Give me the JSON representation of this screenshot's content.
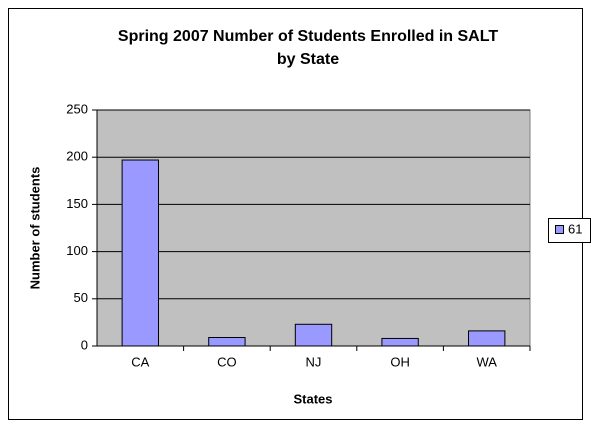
{
  "chart_data": {
    "type": "bar",
    "title": [
      "Spring 2007 Number of Students Enrolled in SALT",
      "by State"
    ],
    "x_label": "States",
    "y_label": "Number of students",
    "categories": [
      "CA",
      "CO",
      "NJ",
      "OH",
      "WA"
    ],
    "series": [
      {
        "name": "61",
        "color": "#9999ff",
        "values": [
          197,
          9,
          23,
          8,
          16
        ]
      }
    ],
    "ylim": [
      0,
      250
    ],
    "yticks": [
      0,
      50,
      100,
      150,
      200,
      250
    ],
    "grid": true,
    "legend": "right",
    "plot_background": "#c0c0c0"
  }
}
